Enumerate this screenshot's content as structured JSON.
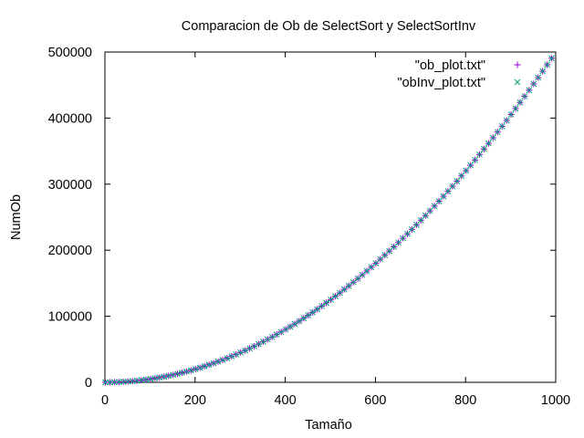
{
  "chart_data": {
    "type": "scatter",
    "title": "Comparacion de Ob de SelectSort y SelectSortInv",
    "xlabel": "Tamaño",
    "ylabel": "NumOb",
    "xlim": [
      0,
      1000
    ],
    "ylim": [
      0,
      500000
    ],
    "xticks": [
      "0",
      "200",
      "400",
      "600",
      "800",
      "1000"
    ],
    "yticks": [
      "0",
      "100000",
      "200000",
      "300000",
      "400000",
      "500000"
    ],
    "grid": false,
    "legend_position": "top-right",
    "x_start": 1,
    "x_step": 10,
    "point_count": 100,
    "formula": "y = x*(x-1)/2",
    "series": [
      {
        "name": "\"ob_plot.txt\"",
        "marker": "plus",
        "color": "#9400d3"
      },
      {
        "name": "\"obInv_plot.txt\"",
        "marker": "cross",
        "color": "#009e73"
      }
    ]
  }
}
